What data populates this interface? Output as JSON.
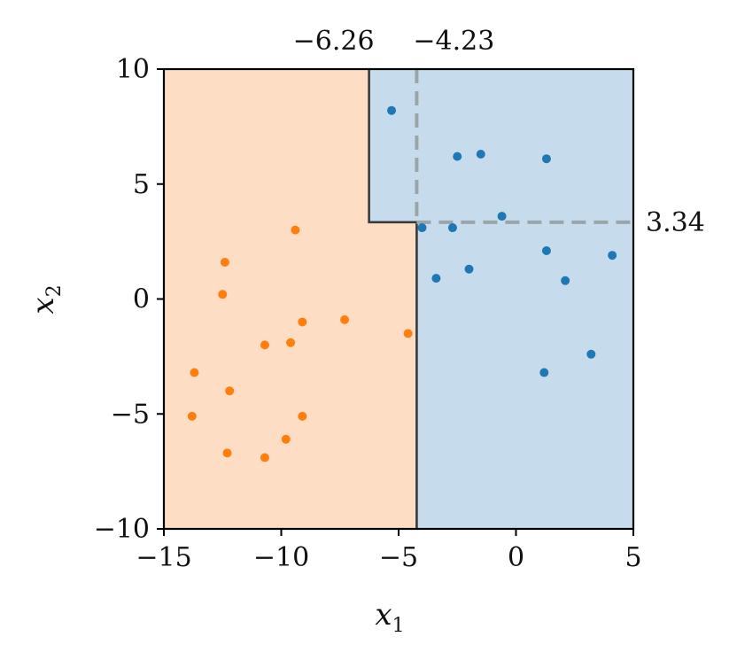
{
  "chart_data": {
    "type": "scatter",
    "xlabel": "x",
    "xlabel_sub": "1",
    "ylabel": "x",
    "ylabel_sub": "2",
    "xlim": [
      -15,
      5
    ],
    "ylim": [
      -10,
      10
    ],
    "x_ticks": [
      -15,
      -10,
      -5,
      0,
      5
    ],
    "y_ticks": [
      -10,
      -5,
      0,
      5,
      10
    ],
    "x_tick_labels": [
      "−15",
      "−10",
      "−5",
      "0",
      "5"
    ],
    "y_tick_labels": [
      "−10",
      "−5",
      "0",
      "5",
      "10"
    ],
    "grid": false,
    "regions": [
      {
        "name": "",
        "color": "#fdddc4"
      },
      {
        "name": "",
        "color": "#c6dcec"
      }
    ],
    "thresholds": [
      {
        "axis": "x",
        "value": -6.26,
        "label": "−6.26",
        "y_from": 3.34,
        "y_to": 10
      },
      {
        "axis": "x",
        "value": -4.23,
        "label": "−4.23",
        "y_from": -10,
        "y_to": 3.34
      },
      {
        "axis": "y",
        "value": 3.34,
        "label": "3.34",
        "x_from": -6.26,
        "x_to": -4.23
      }
    ],
    "dashed_lines": [
      {
        "axis": "x",
        "value": -4.23,
        "from": 3.34,
        "to": 10
      },
      {
        "axis": "y",
        "value": 3.34,
        "from": -4.23,
        "to": 5
      }
    ],
    "series": [
      {
        "color": "#1f77b4",
        "points": [
          [
            -5.3,
            8.2
          ],
          [
            -2.5,
            6.2
          ],
          [
            -1.5,
            6.3
          ],
          [
            1.3,
            6.1
          ],
          [
            -0.6,
            3.6
          ],
          [
            -4.0,
            3.1
          ],
          [
            -2.7,
            3.1
          ],
          [
            1.3,
            2.1
          ],
          [
            4.1,
            1.9
          ],
          [
            -2.0,
            1.3
          ],
          [
            -3.4,
            0.9
          ],
          [
            2.1,
            0.8
          ],
          [
            3.2,
            -2.4
          ],
          [
            1.2,
            -3.2
          ]
        ]
      },
      {
        "color": "#ff7f0e",
        "points": [
          [
            -9.4,
            3.0
          ],
          [
            -12.4,
            1.6
          ],
          [
            -12.5,
            0.2
          ],
          [
            -7.3,
            -0.9
          ],
          [
            -9.1,
            -1.0
          ],
          [
            -4.6,
            -1.5
          ],
          [
            -9.6,
            -1.9
          ],
          [
            -10.7,
            -2.0
          ],
          [
            -13.7,
            -3.2
          ],
          [
            -12.2,
            -4.0
          ],
          [
            -9.1,
            -5.1
          ],
          [
            -13.8,
            -5.1
          ],
          [
            -9.8,
            -6.1
          ],
          [
            -12.3,
            -6.7
          ],
          [
            -10.7,
            -6.9
          ]
        ]
      }
    ]
  }
}
